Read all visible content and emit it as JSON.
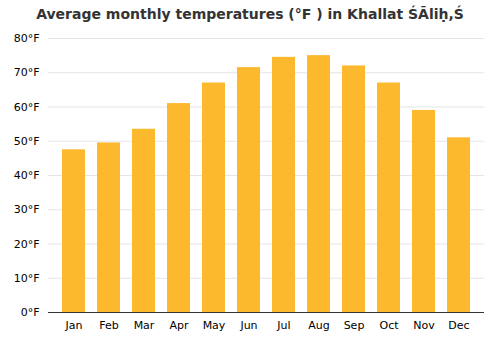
{
  "chart_data": {
    "type": "bar",
    "title": "Average monthly temperatures (°F ) in Khallat ŚĀliḥ,Ś",
    "categories": [
      "Jan",
      "Feb",
      "Mar",
      "Apr",
      "May",
      "Jun",
      "Jul",
      "Aug",
      "Sep",
      "Oct",
      "Nov",
      "Dec"
    ],
    "values": [
      47.5,
      49.5,
      53.5,
      61.0,
      67.0,
      71.5,
      74.5,
      75.0,
      72.0,
      67.0,
      59.0,
      51.0
    ],
    "color": "#FDB92E",
    "ylim": [
      0,
      80
    ],
    "yticks": [
      {
        "value": 0,
        "label": "0°F"
      },
      {
        "value": 10,
        "label": "10°F"
      },
      {
        "value": 20,
        "label": "20°F"
      },
      {
        "value": 30,
        "label": "30°F"
      },
      {
        "value": 40,
        "label": "40°F"
      },
      {
        "value": 50,
        "label": "50°F"
      },
      {
        "value": 60,
        "label": "60°F"
      },
      {
        "value": 70,
        "label": "70°F"
      },
      {
        "value": 80,
        "label": "80°F"
      }
    ],
    "grid": true
  }
}
